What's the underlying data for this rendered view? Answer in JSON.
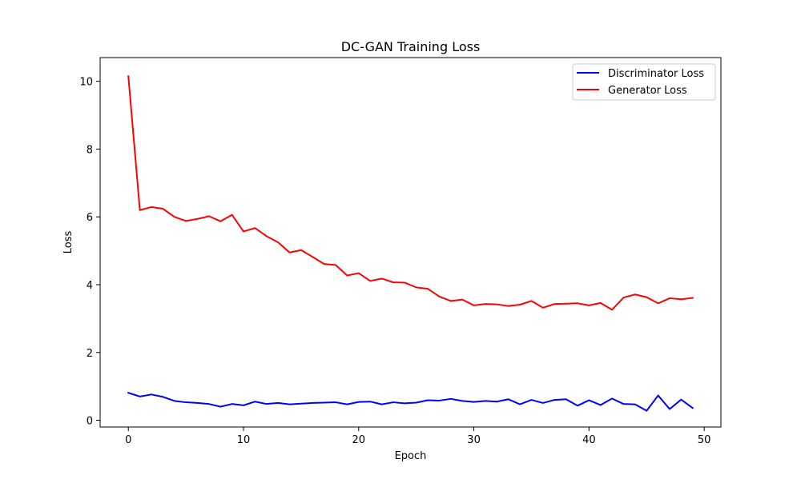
{
  "chart_data": {
    "type": "line",
    "title": "DC-GAN Training Loss",
    "xlabel": "Epoch",
    "ylabel": "Loss",
    "xlim": [
      -2.45,
      51.45
    ],
    "ylim": [
      -0.2,
      10.7
    ],
    "xticks": [
      0,
      10,
      20,
      30,
      40,
      50
    ],
    "yticks": [
      0,
      2,
      4,
      6,
      8,
      10
    ],
    "grid": false,
    "legend_position": "upper right",
    "x": [
      0,
      1,
      2,
      3,
      4,
      5,
      6,
      7,
      8,
      9,
      10,
      11,
      12,
      13,
      14,
      15,
      16,
      17,
      18,
      19,
      20,
      21,
      22,
      23,
      24,
      25,
      26,
      27,
      28,
      29,
      30,
      31,
      32,
      33,
      34,
      35,
      36,
      37,
      38,
      39,
      40,
      41,
      42,
      43,
      44,
      45,
      46,
      47,
      48,
      49
    ],
    "series": [
      {
        "name": "Discriminator Loss",
        "color": "#0000ff",
        "values": [
          0.81,
          0.7,
          0.76,
          0.69,
          0.57,
          0.53,
          0.51,
          0.48,
          0.4,
          0.48,
          0.44,
          0.55,
          0.48,
          0.51,
          0.47,
          0.49,
          0.51,
          0.52,
          0.53,
          0.47,
          0.54,
          0.55,
          0.47,
          0.53,
          0.5,
          0.52,
          0.59,
          0.58,
          0.63,
          0.57,
          0.54,
          0.57,
          0.55,
          0.62,
          0.47,
          0.6,
          0.51,
          0.6,
          0.62,
          0.43,
          0.59,
          0.45,
          0.64,
          0.48,
          0.47,
          0.28,
          0.73,
          0.33,
          0.61,
          0.36
        ]
      },
      {
        "name": "Generator Loss",
        "color": "#ff0000",
        "values": [
          10.15,
          6.2,
          6.29,
          6.24,
          6.0,
          5.88,
          5.94,
          6.02,
          5.87,
          6.06,
          5.57,
          5.67,
          5.43,
          5.25,
          4.95,
          5.02,
          4.82,
          4.61,
          4.58,
          4.27,
          4.34,
          4.11,
          4.18,
          4.07,
          4.06,
          3.92,
          3.88,
          3.65,
          3.52,
          3.56,
          3.39,
          3.43,
          3.42,
          3.37,
          3.41,
          3.52,
          3.32,
          3.43,
          3.44,
          3.45,
          3.39,
          3.46,
          3.26,
          3.62,
          3.71,
          3.63,
          3.45,
          3.6,
          3.57,
          3.61
        ]
      }
    ]
  }
}
